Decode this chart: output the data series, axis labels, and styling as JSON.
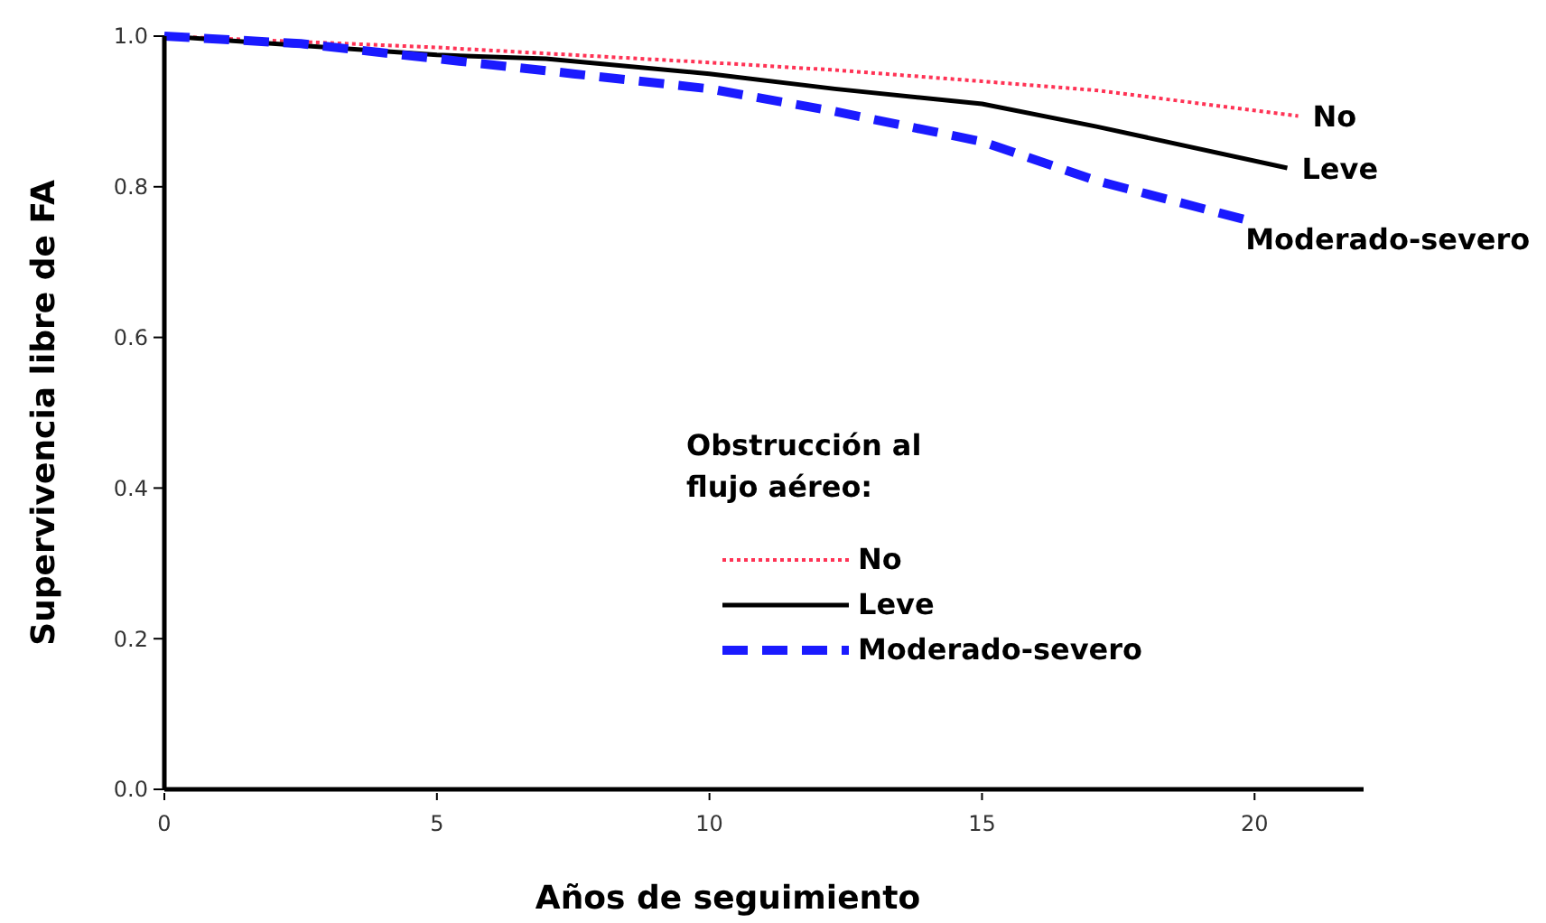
{
  "chart_data": {
    "type": "line",
    "xlabel": "Años de seguimiento",
    "ylabel": "Supervivencia libre de FA",
    "legend_title": "Obstrucción al flujo aéreo:",
    "legend": "center",
    "grid": false,
    "xlim": [
      0,
      22
    ],
    "xticks": [
      0,
      5,
      10,
      15,
      20
    ],
    "ylim": [
      0,
      1
    ],
    "yticks": [
      {
        "value": 0,
        "label": "0.0"
      },
      {
        "value": 0.2,
        "label": "0.2"
      },
      {
        "value": 0.4,
        "label": "0.4"
      },
      {
        "value": 0.6,
        "label": "0.6"
      },
      {
        "value": 0.8,
        "label": "0.8"
      },
      {
        "value": 1,
        "label": "1.0"
      }
    ],
    "series": [
      {
        "name": "No",
        "color": "#ff3355",
        "line_style": "dotted",
        "x": [
          0,
          5,
          10,
          12.3,
          15,
          17.1,
          20.8
        ],
        "values": [
          1,
          0.985,
          0.965,
          0.955,
          0.94,
          0.928,
          0.894
        ]
      },
      {
        "name": "Leve",
        "color": "#000000",
        "line_style": "solid",
        "x": [
          0,
          5,
          7,
          10,
          12.3,
          15,
          17.1,
          20.6
        ],
        "values": [
          1,
          0.975,
          0.97,
          0.95,
          0.93,
          0.91,
          0.88,
          0.825
        ]
      },
      {
        "name": "Moderado-severo",
        "color": "#1a1aff",
        "line_style": "dashed",
        "x": [
          0,
          2.5,
          5,
          7.5,
          10,
          12.3,
          15,
          17.1,
          19.9
        ],
        "values": [
          1,
          0.99,
          0.97,
          0.95,
          0.93,
          0.9,
          0.86,
          0.808,
          0.755
        ]
      }
    ]
  }
}
